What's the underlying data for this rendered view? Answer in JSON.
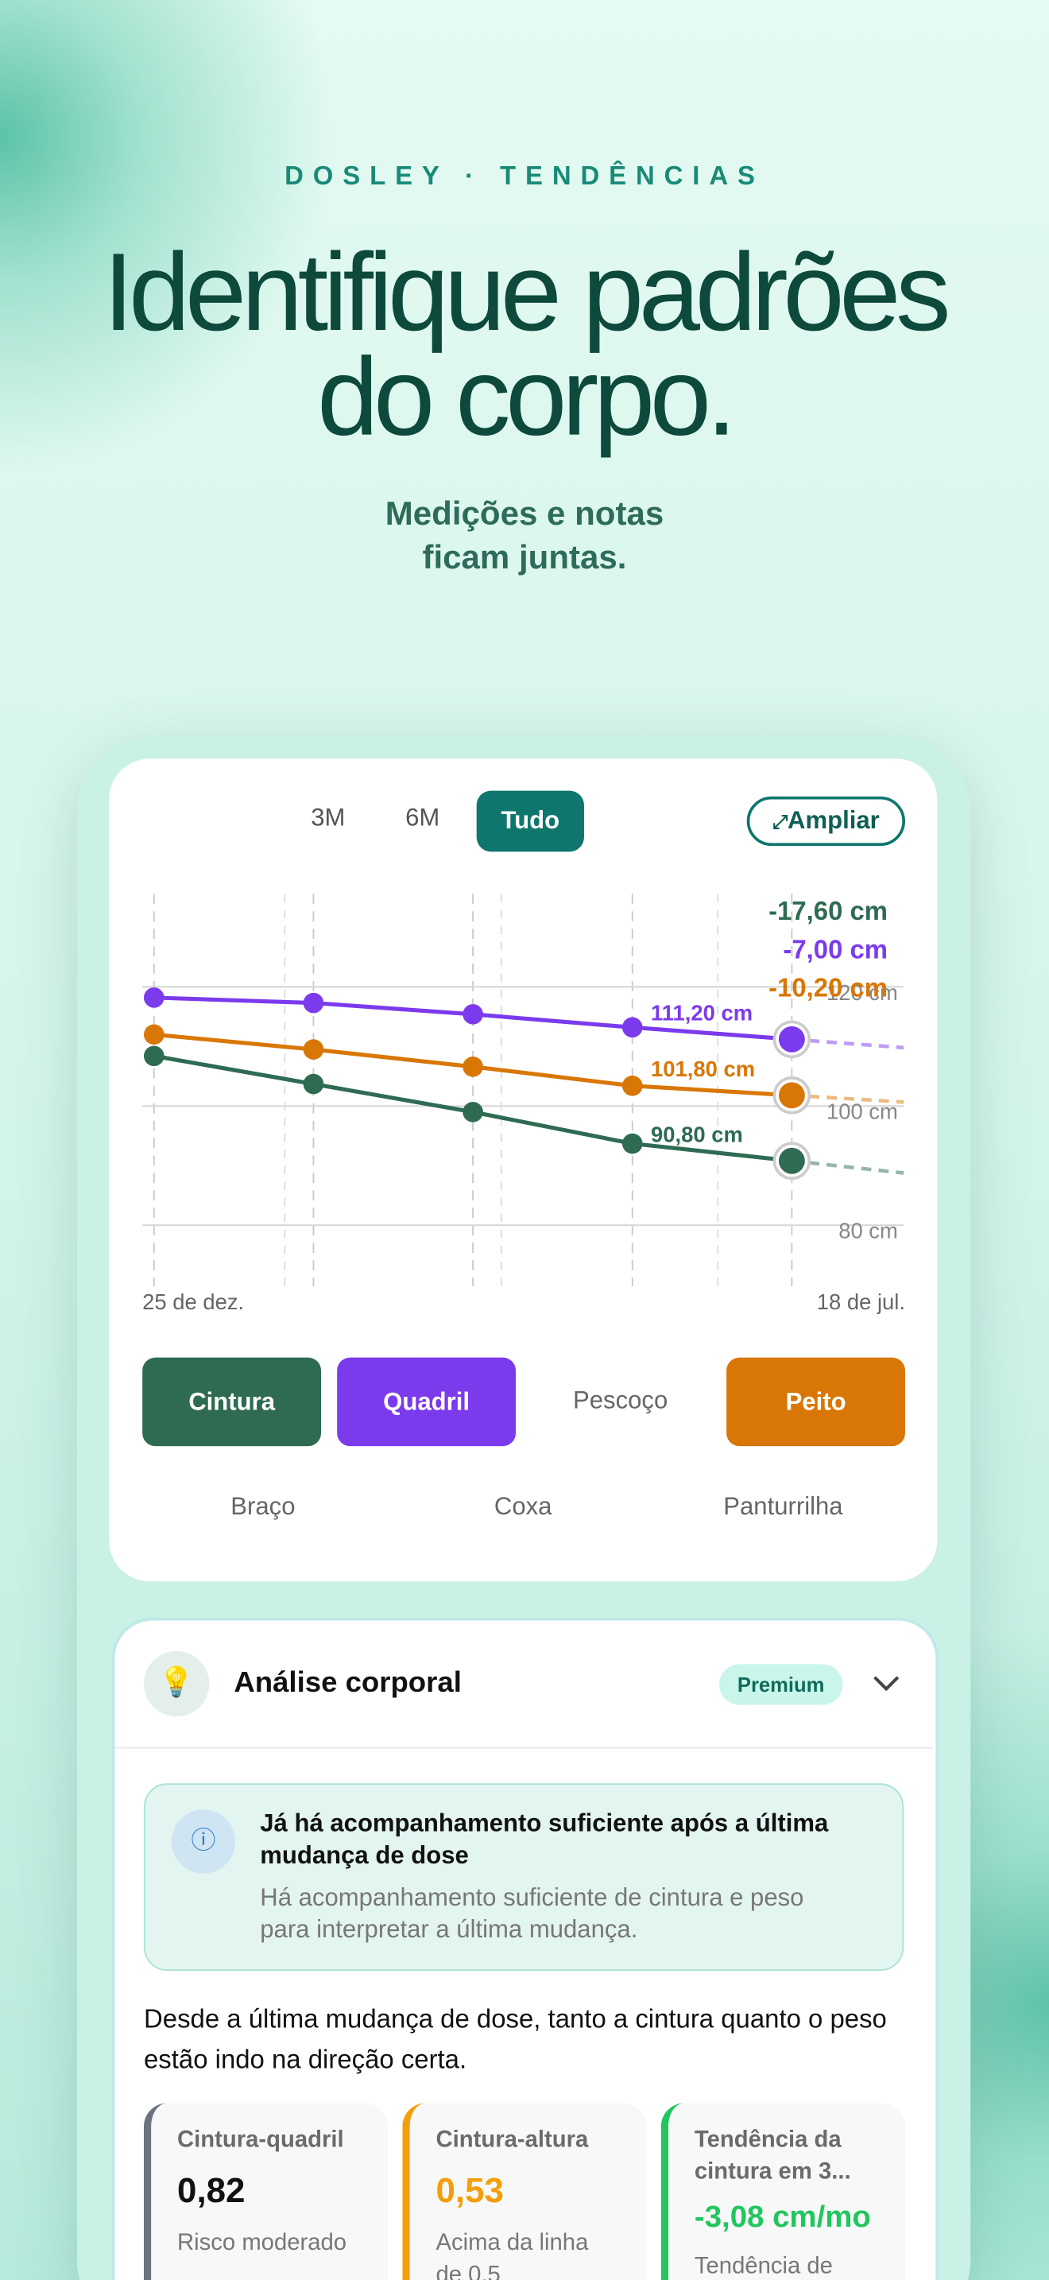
{
  "header": {
    "eyebrow": "DOSLEY · TENDÊNCIAS",
    "title_lines": [
      "Identifique padrões",
      "do corpo."
    ],
    "subtitle_lines": [
      "Medições e notas",
      "ficam juntas."
    ]
  },
  "range_tabs": [
    "3M",
    "6M",
    "Tudo"
  ],
  "expand_button": "Ampliar",
  "chart_data": {
    "type": "line",
    "categories": [
      "25 de dez.",
      null,
      null,
      null,
      "18 de jul."
    ],
    "series": [
      {
        "name": "Cintura",
        "color": "#2e6b52",
        "values": [
          108.4,
          103.7,
          99.0,
          93.7,
          90.8
        ],
        "value_labels": [
          null,
          null,
          null,
          null,
          "90,80 cm"
        ],
        "change_label": "-17,60 cm"
      },
      {
        "name": "Quadril",
        "color": "#7c3aed",
        "values": [
          118.2,
          117.3,
          115.4,
          113.2,
          111.2
        ],
        "value_labels": [
          null,
          null,
          null,
          null,
          "111,20 cm"
        ],
        "change_label": "-7,00 cm"
      },
      {
        "name": "Peito",
        "color": "#d97706",
        "values": [
          112.0,
          109.5,
          106.6,
          103.4,
          101.8
        ],
        "value_labels": [
          null,
          null,
          null,
          null,
          "101,80 cm"
        ],
        "change_label": "-10,20 cm"
      }
    ],
    "ylim": [
      70,
      130
    ],
    "yticks": [
      {
        "value": 80,
        "label": "80 cm"
      },
      {
        "value": 100,
        "label": "100 cm"
      },
      {
        "value": 120,
        "label": "120 cm"
      }
    ],
    "grid": true
  },
  "other_metrics": [
    "Pescoço",
    "Braço",
    "Coxa",
    "Panturrilha"
  ],
  "analysis": {
    "title": "Análise corporal",
    "badge": "Premium",
    "notice": {
      "title": "Já há acompanhamento suficiente após a última mudança de dose",
      "body": "Há acompanhamento suficiente de cintura e peso para interpretar a última mudança."
    },
    "summary": "Desde a última mudança de dose, tanto a cintura quanto o peso estão indo na direção certa.",
    "metrics": [
      {
        "label": "Cintura-quadril",
        "value": "0,82",
        "note": "Risco moderado"
      },
      {
        "label": "Cintura-altura",
        "value": "0,53",
        "note": "Acima da linha de 0,5"
      },
      {
        "label": "Tendência da cintura em 3...",
        "value": "-3,08 cm/mo",
        "note": "Tendência de"
      }
    ]
  }
}
